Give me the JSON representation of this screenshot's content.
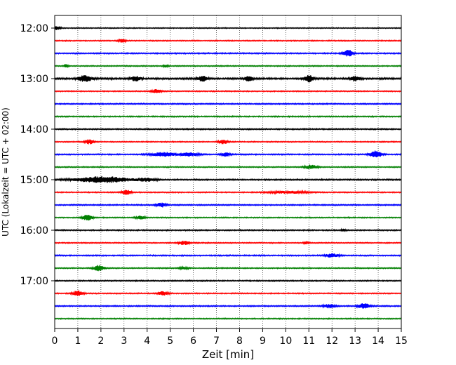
{
  "chart_data": {
    "type": "line",
    "title": "",
    "xlabel": "Zeit  [min]",
    "ylabel": "UTC (Lokalzeit = UTC + 02:00)",
    "xlim": [
      0,
      15
    ],
    "x_ticks": [
      "0",
      "1",
      "2",
      "3",
      "4",
      "5",
      "6",
      "7",
      "8",
      "9",
      "10",
      "11",
      "12",
      "13",
      "14",
      "15"
    ],
    "y_ticks": [
      "12:00",
      "13:00",
      "14:00",
      "15:00",
      "16:00",
      "17:00"
    ],
    "y_tick_rows": [
      0,
      4,
      8,
      12,
      16,
      20
    ],
    "grid": "vertical dotted",
    "legend": "none",
    "row_colors": [
      "#000000",
      "#ff0000",
      "#0000ff",
      "#008000"
    ],
    "series": [
      {
        "start": "12:00",
        "noise": 0.7,
        "events": [
          {
            "t": 0.1,
            "a": 2.4,
            "w": 0.15
          }
        ]
      },
      {
        "start": "12:15",
        "noise": 0.8,
        "events": [
          {
            "t": 2.9,
            "a": 2.6,
            "w": 0.15
          }
        ]
      },
      {
        "start": "12:30",
        "noise": 0.9,
        "events": [
          {
            "t": 12.7,
            "a": 4.8,
            "w": 0.2
          }
        ]
      },
      {
        "start": "12:45",
        "noise": 0.8,
        "events": [
          {
            "t": 0.5,
            "a": 2.5,
            "w": 0.08
          },
          {
            "t": 4.8,
            "a": 2.0,
            "w": 0.1
          }
        ]
      },
      {
        "start": "13:00",
        "noise": 1.3,
        "events": [
          {
            "t": 1.3,
            "a": 4.0,
            "w": 0.3
          },
          {
            "t": 3.5,
            "a": 3.5,
            "w": 0.2
          },
          {
            "t": 6.4,
            "a": 3.5,
            "w": 0.2
          },
          {
            "t": 8.4,
            "a": 3.5,
            "w": 0.15
          },
          {
            "t": 11.0,
            "a": 5.0,
            "w": 0.2
          },
          {
            "t": 13.0,
            "a": 3.5,
            "w": 0.2
          }
        ]
      },
      {
        "start": "13:15",
        "noise": 0.8,
        "events": [
          {
            "t": 4.4,
            "a": 2.6,
            "w": 0.2
          }
        ]
      },
      {
        "start": "13:30",
        "noise": 0.9,
        "events": []
      },
      {
        "start": "13:45",
        "noise": 0.9,
        "events": []
      },
      {
        "start": "14:00",
        "noise": 0.9,
        "events": []
      },
      {
        "start": "14:15",
        "noise": 0.8,
        "events": [
          {
            "t": 1.5,
            "a": 3.2,
            "w": 0.18
          },
          {
            "t": 7.3,
            "a": 3.0,
            "w": 0.18
          }
        ]
      },
      {
        "start": "14:30",
        "noise": 0.9,
        "events": [
          {
            "t": 4.7,
            "a": 2.8,
            "w": 0.5
          },
          {
            "t": 5.8,
            "a": 2.6,
            "w": 0.4
          },
          {
            "t": 7.4,
            "a": 2.6,
            "w": 0.2
          },
          {
            "t": 13.9,
            "a": 4.8,
            "w": 0.25
          }
        ]
      },
      {
        "start": "14:45",
        "noise": 0.8,
        "events": [
          {
            "t": 11.1,
            "a": 3.0,
            "w": 0.25
          }
        ]
      },
      {
        "start": "15:00",
        "noise": 1.0,
        "events": [
          {
            "t": 2.1,
            "a": 4.5,
            "w": 1.1
          },
          {
            "t": 4.0,
            "a": 2.0,
            "w": 0.4
          }
        ]
      },
      {
        "start": "15:15",
        "noise": 0.8,
        "events": [
          {
            "t": 3.1,
            "a": 3.5,
            "w": 0.18
          },
          {
            "t": 10.1,
            "a": 1.6,
            "w": 0.8
          }
        ]
      },
      {
        "start": "15:30",
        "noise": 0.9,
        "events": [
          {
            "t": 4.6,
            "a": 3.2,
            "w": 0.2
          }
        ]
      },
      {
        "start": "15:45",
        "noise": 0.8,
        "events": [
          {
            "t": 1.4,
            "a": 4.0,
            "w": 0.22
          },
          {
            "t": 3.7,
            "a": 2.5,
            "w": 0.18
          }
        ]
      },
      {
        "start": "16:00",
        "noise": 0.9,
        "events": [
          {
            "t": 12.5,
            "a": 1.5,
            "w": 0.1
          }
        ]
      },
      {
        "start": "16:15",
        "noise": 0.8,
        "events": [
          {
            "t": 5.6,
            "a": 2.8,
            "w": 0.22
          },
          {
            "t": 10.9,
            "a": 1.8,
            "w": 0.1
          }
        ]
      },
      {
        "start": "16:30",
        "noise": 0.9,
        "events": [
          {
            "t": 12.0,
            "a": 2.4,
            "w": 0.3
          }
        ]
      },
      {
        "start": "16:45",
        "noise": 0.8,
        "events": [
          {
            "t": 1.9,
            "a": 4.0,
            "w": 0.22
          },
          {
            "t": 5.6,
            "a": 1.4,
            "w": 0.2
          }
        ]
      },
      {
        "start": "17:00",
        "noise": 0.9,
        "events": []
      },
      {
        "start": "17:15",
        "noise": 0.8,
        "events": [
          {
            "t": 1.0,
            "a": 3.6,
            "w": 0.22
          },
          {
            "t": 4.7,
            "a": 2.8,
            "w": 0.2
          }
        ]
      },
      {
        "start": "17:30",
        "noise": 0.9,
        "events": [
          {
            "t": 11.9,
            "a": 2.6,
            "w": 0.25
          },
          {
            "t": 13.4,
            "a": 3.8,
            "w": 0.25
          }
        ]
      },
      {
        "start": "17:45",
        "noise": 0.8,
        "events": []
      }
    ]
  }
}
